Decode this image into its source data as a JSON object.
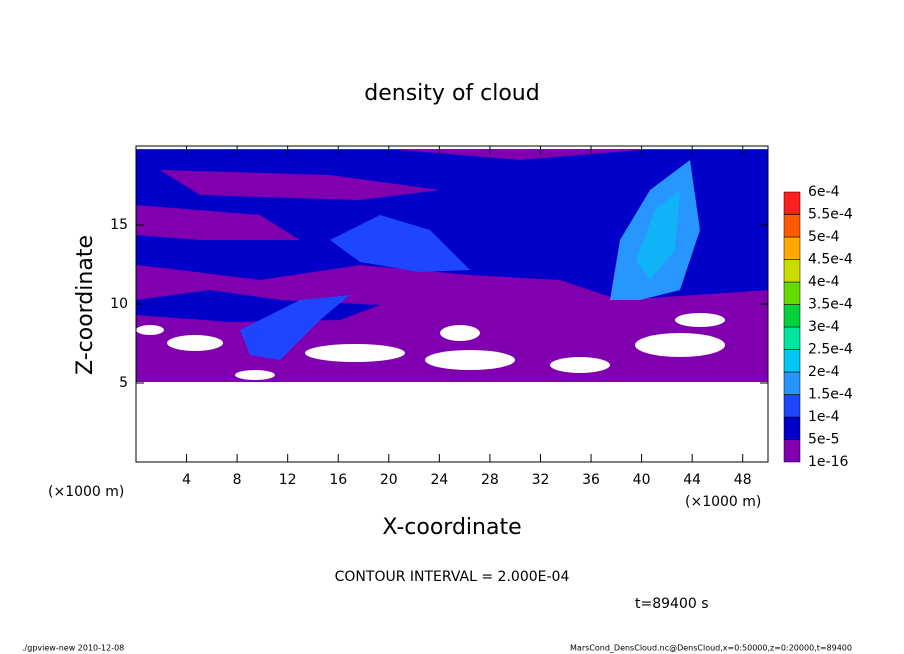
{
  "chart_data": {
    "type": "contour",
    "title": "density of cloud",
    "x_label": "X-coordinate",
    "y_label": "Z-coordinate",
    "x_unit": "(×1000 m)",
    "y_unit": "(×1000 m)",
    "xlim": [
      0,
      50
    ],
    "ylim": [
      0,
      20
    ],
    "xticks": [
      4,
      8,
      12,
      16,
      20,
      24,
      28,
      32,
      36,
      40,
      44,
      48
    ],
    "yticks": [
      5,
      10,
      15
    ],
    "levels": [
      {
        "value": 1e-16,
        "label": "1e-16"
      },
      {
        "value": 5e-05,
        "label": "5e-5"
      },
      {
        "value": 0.0001,
        "label": "1e-4"
      },
      {
        "value": 0.00015,
        "label": "1.5e-4"
      },
      {
        "value": 0.0002,
        "label": "2e-4"
      },
      {
        "value": 0.00025,
        "label": "2.5e-4"
      },
      {
        "value": 0.0003,
        "label": "3e-4"
      },
      {
        "value": 0.00035,
        "label": "3.5e-4"
      },
      {
        "value": 0.0004,
        "label": "4e-4"
      },
      {
        "value": 0.00045,
        "label": "4.5e-4"
      },
      {
        "value": 0.0005,
        "label": "5e-4"
      },
      {
        "value": 0.00055,
        "label": "5.5e-4"
      },
      {
        "value": 0.0006,
        "label": "6e-4"
      }
    ],
    "colors": [
      "#8000b0",
      "#0000c8",
      "#1e46ff",
      "#2896ff",
      "#00c8f0",
      "#00e6a0",
      "#00d23c",
      "#64dc00",
      "#c8dc00",
      "#ffaa00",
      "#ff5a00",
      "#ff1e1e",
      "#ff8c8c"
    ],
    "contour_interval": "CONTOUR INTERVAL = 2.000E-04",
    "time_label": "t=89400 s",
    "footer_left": "./gpview-new   2010-12-08",
    "footer_right": "MarsCond_DensCloud.nc@DensCloud,x=0:50000,z=0:20000,t=89400"
  }
}
